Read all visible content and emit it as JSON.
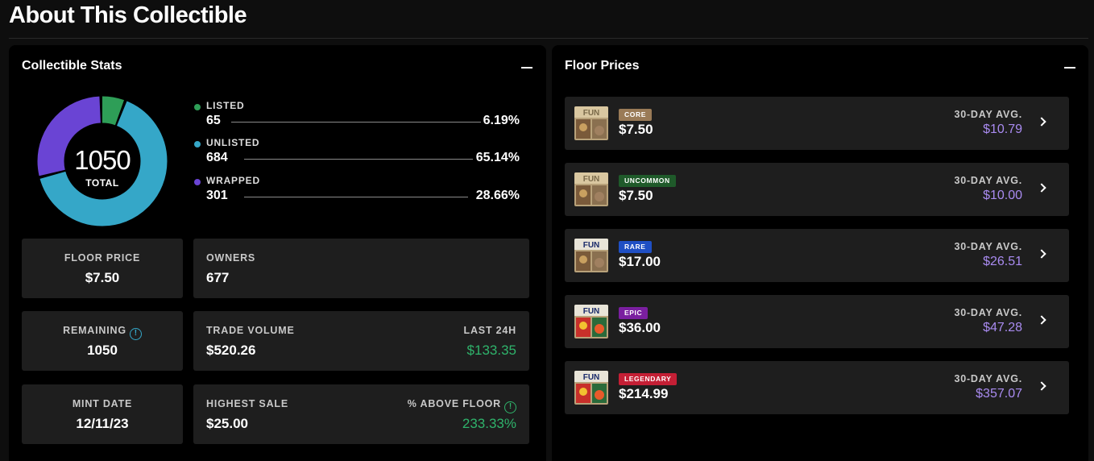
{
  "page": {
    "title": "About This Collectible"
  },
  "stats_panel": {
    "title": "Collectible Stats",
    "total_value": "1050",
    "total_label": "TOTAL",
    "breakdown": [
      {
        "label": "LISTED",
        "count": "65",
        "percent": "6.19%",
        "color": "#2e9e57",
        "fraction": 0.0619
      },
      {
        "label": "UNLISTED",
        "count": "684",
        "percent": "65.14%",
        "color": "#35a7c8",
        "fraction": 0.6514
      },
      {
        "label": "WRAPPED",
        "count": "301",
        "percent": "28.66%",
        "color": "#6a44d4",
        "fraction": 0.2866
      }
    ],
    "cards": {
      "floor_price": {
        "label": "FLOOR PRICE",
        "value": "$7.50"
      },
      "owners": {
        "label": "OWNERS",
        "value": "677"
      },
      "remaining": {
        "label": "REMAINING",
        "value": "1050"
      },
      "trade_volume": {
        "label": "TRADE VOLUME",
        "value": "$520.26",
        "sub_label": "LAST 24H",
        "sub_value": "$133.35"
      },
      "mint_date": {
        "label": "MINT DATE",
        "value": "12/11/23"
      },
      "highest_sale": {
        "label": "HIGHEST SALE",
        "value": "$25.00",
        "sub_label": "% ABOVE FLOOR",
        "sub_value": "233.33%"
      }
    }
  },
  "floor_panel": {
    "title": "Floor Prices",
    "rows": [
      {
        "rarity": "CORE",
        "badge_color": "#9a7b57",
        "price": "$7.50",
        "avg_label": "30-DAY AVG.",
        "avg": "$10.79"
      },
      {
        "rarity": "UNCOMMON",
        "badge_color": "#1f5a2a",
        "price": "$7.50",
        "avg_label": "30-DAY AVG.",
        "avg": "$10.00"
      },
      {
        "rarity": "RARE",
        "badge_color": "#1f4fc4",
        "price": "$17.00",
        "avg_label": "30-DAY AVG.",
        "avg": "$26.51"
      },
      {
        "rarity": "EPIC",
        "badge_color": "#7a1fa0",
        "price": "$36.00",
        "avg_label": "30-DAY AVG.",
        "avg": "$47.28"
      },
      {
        "rarity": "LEGENDARY",
        "badge_color": "#c41f35",
        "price": "$214.99",
        "avg_label": "30-DAY AVG.",
        "avg": "$357.07"
      }
    ]
  },
  "icons": {
    "collapse": "minus-icon",
    "info": "info-icon",
    "chevron": "chevron-right-icon"
  }
}
